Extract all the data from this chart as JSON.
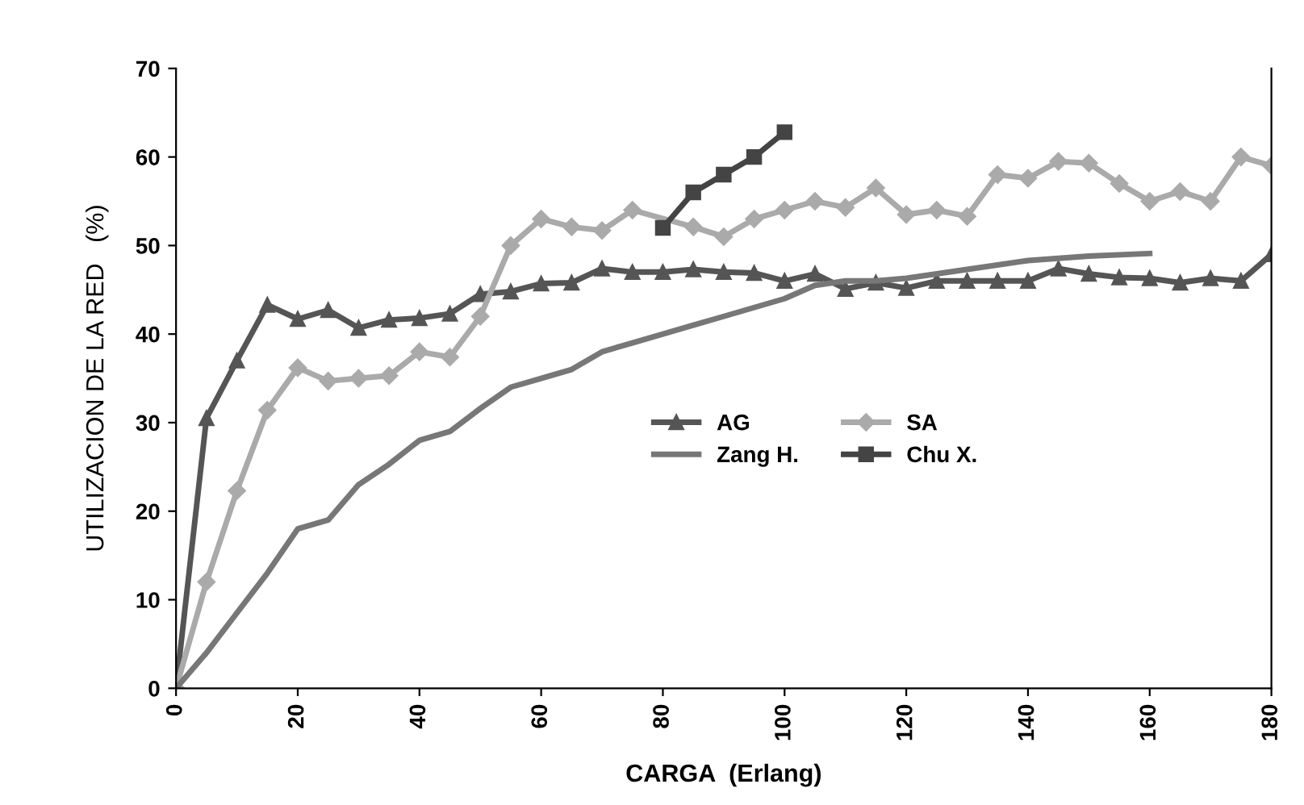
{
  "chart_data": {
    "type": "line",
    "xlabel": "CARGA  (Erlang)",
    "ylabel": "UTILIZACION DE LA RED   (%)",
    "xlim": [
      0,
      180
    ],
    "xticks": [
      0,
      20,
      40,
      60,
      80,
      100,
      120,
      140,
      160,
      180
    ],
    "ylim": [
      0,
      70
    ],
    "yticks": [
      0,
      10,
      20,
      30,
      40,
      50,
      60,
      70
    ],
    "grid": false,
    "legend": "right",
    "series": [
      {
        "name": "AG",
        "color": "#555555",
        "marker": "triangle",
        "x": [
          0,
          5,
          10,
          15,
          20,
          25,
          30,
          35,
          40,
          45,
          50,
          55,
          60,
          65,
          70,
          75,
          80,
          85,
          90,
          95,
          100,
          105,
          110,
          115,
          120,
          125,
          130,
          135,
          140,
          145,
          150,
          155,
          160,
          165,
          170,
          175,
          180
        ],
        "values": [
          0,
          30.5,
          37,
          43.3,
          41.7,
          42.7,
          40.7,
          41.6,
          41.8,
          42.3,
          44.5,
          44.8,
          45.7,
          45.8,
          47.4,
          47,
          47,
          47.3,
          47,
          46.9,
          46,
          46.8,
          45.1,
          45.8,
          45.2,
          46,
          46,
          46,
          46,
          47.4,
          46.8,
          46.4,
          46.3,
          45.8,
          46.3,
          46,
          49
        ]
      },
      {
        "name": "SA",
        "color": "#aaaaaa",
        "marker": "diamond",
        "x": [
          0,
          5,
          10,
          15,
          20,
          25,
          30,
          35,
          40,
          45,
          50,
          55,
          60,
          65,
          70,
          75,
          80,
          85,
          90,
          95,
          100,
          105,
          110,
          115,
          120,
          125,
          130,
          135,
          140,
          145,
          150,
          155,
          160,
          165,
          170,
          175,
          180
        ],
        "values": [
          0,
          12,
          22.3,
          31.4,
          36.2,
          34.7,
          35,
          35.3,
          38,
          37.4,
          42,
          50,
          53,
          52.1,
          51.7,
          54,
          null,
          52.1,
          51,
          53,
          54,
          55,
          54.3,
          56.5,
          53.5,
          54,
          53.3,
          58,
          57.6,
          59.5,
          59.3,
          57,
          55,
          56.1,
          55,
          60,
          59
        ]
      },
      {
        "name": "Zang H.",
        "color": "#777777",
        "marker": "none",
        "x": [
          0,
          5,
          10,
          15,
          20,
          25,
          30,
          35,
          40,
          45,
          50,
          55,
          60,
          65,
          70,
          75,
          80,
          85,
          90,
          95,
          100,
          105,
          110,
          115,
          120,
          130,
          140,
          150,
          160
        ],
        "values": [
          0,
          4,
          8.5,
          13,
          18,
          19,
          23,
          25.3,
          28,
          29,
          31.6,
          34,
          35,
          36,
          38,
          39,
          40,
          41,
          42,
          43,
          44,
          45.5,
          46,
          46,
          46.3,
          47.3,
          48.3,
          48.8,
          49.1
        ]
      },
      {
        "name": "Chu X.",
        "color": "#444444",
        "marker": "square",
        "x": [
          80,
          85,
          90,
          95,
          100
        ],
        "values": [
          52,
          56,
          58,
          60,
          62.8
        ]
      }
    ]
  }
}
